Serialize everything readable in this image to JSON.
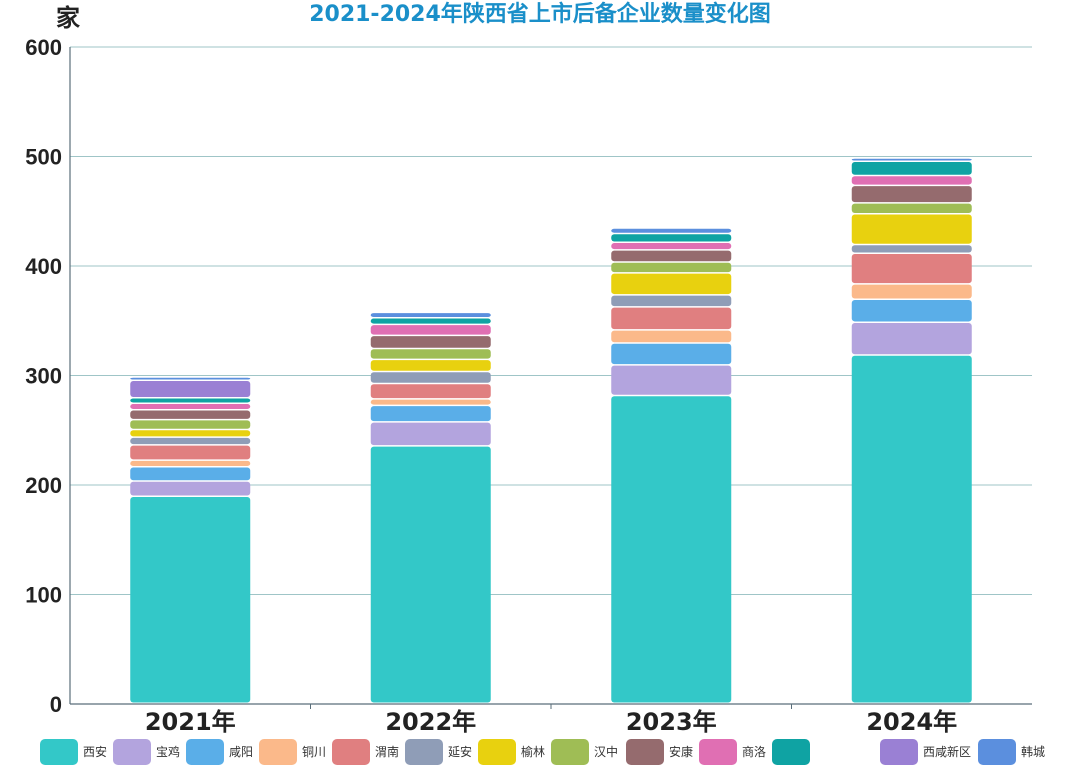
{
  "chart_data": {
    "type": "bar",
    "stacked": true,
    "title": "2021-2024年陕西省上市后备企业数量变化图",
    "ylabel": "家",
    "ylim": [
      0,
      600
    ],
    "yticks": [
      0,
      100,
      200,
      300,
      400,
      500,
      600
    ],
    "grid": true,
    "legend_position": "bottom",
    "categories": [
      "2021年",
      "2022年",
      "2023年",
      "2024年"
    ],
    "series": [
      {
        "name": "西安",
        "color": "#33c8c8",
        "values": [
          189,
          235,
          281,
          318
        ]
      },
      {
        "name": "宝鸡",
        "color": "#b3a4de",
        "values": [
          14,
          22,
          28,
          30
        ]
      },
      {
        "name": "咸阳",
        "color": "#5aaee8",
        "values": [
          13,
          15,
          20,
          21
        ]
      },
      {
        "name": "铜川",
        "color": "#fbb98a",
        "values": [
          6,
          6,
          12,
          14
        ]
      },
      {
        "name": "渭南",
        "color": "#e07f80",
        "values": [
          14,
          14,
          21,
          28
        ]
      },
      {
        "name": "延安",
        "color": "#8f9db7",
        "values": [
          7,
          11,
          11,
          8
        ]
      },
      {
        "name": "榆林",
        "color": "#e8d10f",
        "values": [
          7,
          11,
          20,
          28
        ]
      },
      {
        "name": "汉中",
        "color": "#9fbd55",
        "values": [
          9,
          10,
          10,
          10
        ]
      },
      {
        "name": "安康",
        "color": "#956b6e",
        "values": [
          9,
          12,
          11,
          16
        ]
      },
      {
        "name": "商洛",
        "color": "#e06fb3",
        "values": [
          6,
          10,
          7,
          9
        ]
      },
      {
        "name": "",
        "color": "#0fa3a3",
        "values": [
          5,
          6,
          8,
          13
        ]
      },
      {
        "name": "西咸新区",
        "color": "#9a80d4",
        "values": [
          16,
          0,
          0,
          0
        ]
      },
      {
        "name": "韩城",
        "color": "#5b8fde",
        "values": [
          3,
          5,
          5,
          3
        ]
      }
    ]
  }
}
